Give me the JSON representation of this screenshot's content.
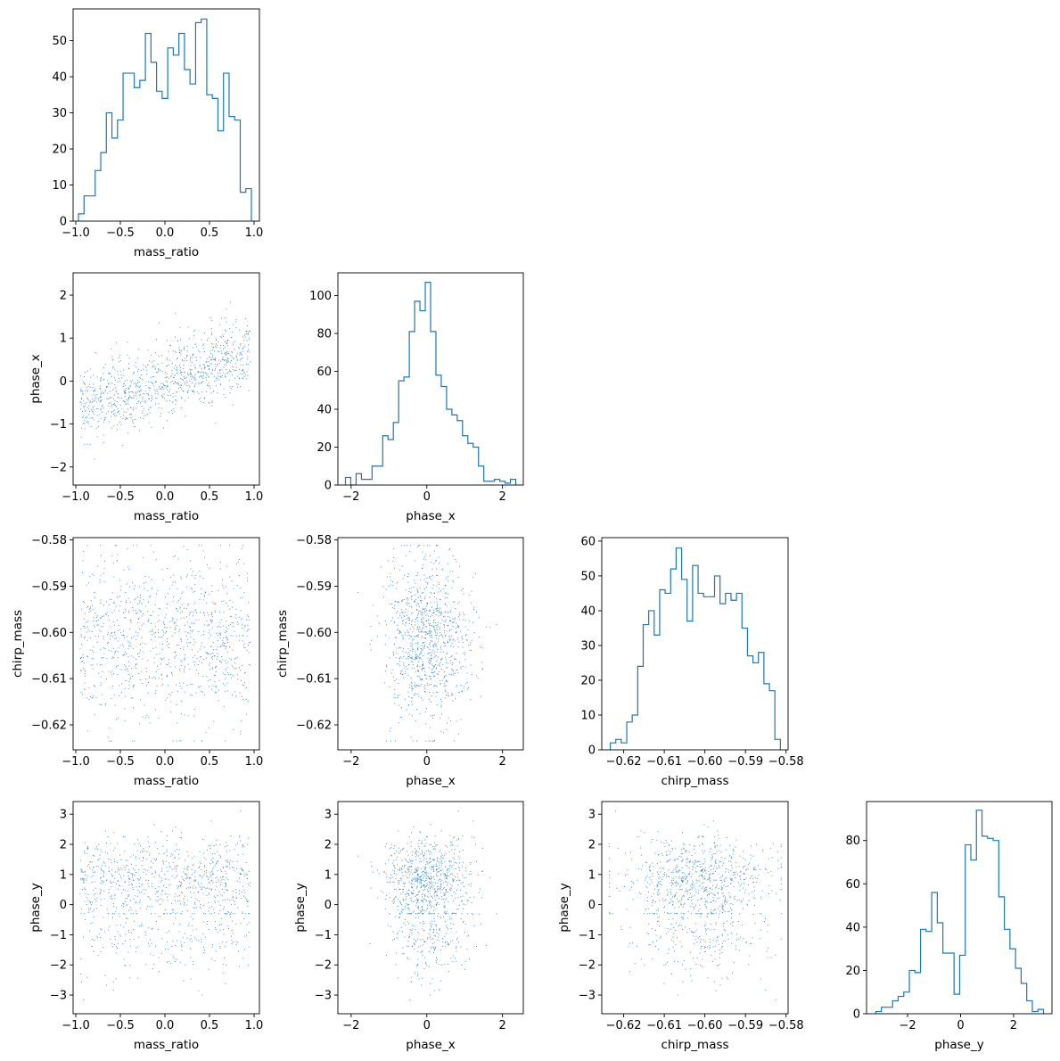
{
  "chart_data": [
    {
      "type": "histogram",
      "variable": "mass_ratio",
      "xlabel": "mass_ratio",
      "ylabel": "",
      "xlim": [
        -1.03,
        1.06
      ],
      "ylim": [
        0,
        58.8
      ],
      "xticks": [
        {
          "v": -1.0,
          "label": "−1.0"
        },
        {
          "v": -0.5,
          "label": "−0.5"
        },
        {
          "v": 0.0,
          "label": "0.0"
        },
        {
          "v": 0.5,
          "label": "0.5"
        },
        {
          "v": 1.0,
          "label": "1.0"
        }
      ],
      "yticks": [
        {
          "v": 0,
          "label": "0"
        },
        {
          "v": 10,
          "label": "10"
        },
        {
          "v": 20,
          "label": "20"
        },
        {
          "v": 30,
          "label": "30"
        },
        {
          "v": 40,
          "label": "40"
        },
        {
          "v": 50,
          "label": "50"
        }
      ],
      "bins": {
        "start": -0.97,
        "end": 0.97
      },
      "counts": [
        2,
        7,
        7,
        14,
        19,
        30,
        23,
        28,
        41,
        41,
        37,
        39,
        52,
        44,
        36,
        34,
        48,
        46,
        52,
        42,
        38,
        55,
        56,
        35,
        34,
        25,
        41,
        29,
        28,
        8,
        9
      ]
    },
    {
      "type": "scatter",
      "xvar": "mass_ratio",
      "yvar": "phase_x",
      "xlabel": "mass_ratio",
      "ylabel": "phase_x",
      "xlim": [
        -1.03,
        1.06
      ],
      "ylim": [
        -2.42,
        2.52
      ],
      "xticks": [
        {
          "v": -1.0,
          "label": "−1.0"
        },
        {
          "v": -0.5,
          "label": "−0.5"
        },
        {
          "v": 0.0,
          "label": "0.0"
        },
        {
          "v": 0.5,
          "label": "0.5"
        },
        {
          "v": 1.0,
          "label": "1.0"
        }
      ],
      "yticks": [
        {
          "v": -2,
          "label": "−2"
        },
        {
          "v": -1,
          "label": "−1"
        },
        {
          "v": 0,
          "label": "0"
        },
        {
          "v": 1,
          "label": "1"
        },
        {
          "v": 2,
          "label": "2"
        }
      ]
    },
    {
      "type": "histogram",
      "variable": "phase_x",
      "xlabel": "phase_x",
      "ylabel": "",
      "xlim": [
        -2.35,
        2.55
      ],
      "ylim": [
        0,
        112
      ],
      "xticks": [
        {
          "v": -2,
          "label": "−2"
        },
        {
          "v": 0,
          "label": "0"
        },
        {
          "v": 2,
          "label": "2"
        }
      ],
      "yticks": [
        {
          "v": 0,
          "label": "0"
        },
        {
          "v": 20,
          "label": "20"
        },
        {
          "v": 40,
          "label": "40"
        },
        {
          "v": 60,
          "label": "60"
        },
        {
          "v": 80,
          "label": "80"
        },
        {
          "v": 100,
          "label": "100"
        }
      ],
      "bins": {
        "start": -2.15,
        "end": 2.35
      },
      "counts": [
        4,
        0,
        6,
        3,
        3,
        10,
        10,
        26,
        24,
        33,
        55,
        57,
        81,
        97,
        92,
        107,
        81,
        58,
        52,
        40,
        37,
        34,
        26,
        22,
        20,
        10,
        2,
        2,
        3,
        2,
        1,
        3
      ]
    },
    {
      "type": "scatter",
      "xvar": "mass_ratio",
      "yvar": "chirp_mass",
      "xlabel": "mass_ratio",
      "ylabel": "chirp_mass",
      "xlim": [
        -1.03,
        1.06
      ],
      "ylim": [
        -0.6254,
        -0.5795
      ],
      "xticks": [
        {
          "v": -1.0,
          "label": "−1.0"
        },
        {
          "v": -0.5,
          "label": "−0.5"
        },
        {
          "v": 0.0,
          "label": "0.0"
        },
        {
          "v": 0.5,
          "label": "0.5"
        },
        {
          "v": 1.0,
          "label": "1.0"
        }
      ],
      "yticks": [
        {
          "v": -0.62,
          "label": "−0.62"
        },
        {
          "v": -0.61,
          "label": "−0.61"
        },
        {
          "v": -0.6,
          "label": "−0.60"
        },
        {
          "v": -0.59,
          "label": "−0.59"
        },
        {
          "v": -0.58,
          "label": "−0.58"
        }
      ]
    },
    {
      "type": "scatter",
      "xvar": "phase_x",
      "yvar": "chirp_mass",
      "xlabel": "phase_x",
      "ylabel": "chirp_mass",
      "xlim": [
        -2.35,
        2.55
      ],
      "ylim": [
        -0.6254,
        -0.5795
      ],
      "xticks": [
        {
          "v": -2,
          "label": "−2"
        },
        {
          "v": 0,
          "label": "0"
        },
        {
          "v": 2,
          "label": "2"
        }
      ],
      "yticks": [
        {
          "v": -0.62,
          "label": "−0.62"
        },
        {
          "v": -0.61,
          "label": "−0.61"
        },
        {
          "v": -0.6,
          "label": "−0.60"
        },
        {
          "v": -0.59,
          "label": "−0.59"
        },
        {
          "v": -0.58,
          "label": "−0.58"
        }
      ]
    },
    {
      "type": "histogram",
      "variable": "chirp_mass",
      "xlabel": "chirp_mass",
      "ylabel": "",
      "xlim": [
        -0.6254,
        -0.5795
      ],
      "ylim": [
        0,
        61
      ],
      "xticks": [
        {
          "v": -0.62,
          "label": "−0.62"
        },
        {
          "v": -0.61,
          "label": "−0.61"
        },
        {
          "v": -0.6,
          "label": "−0.60"
        },
        {
          "v": -0.59,
          "label": "−0.59"
        },
        {
          "v": -0.58,
          "label": "−0.58"
        }
      ],
      "yticks": [
        {
          "v": 0,
          "label": "0"
        },
        {
          "v": 10,
          "label": "10"
        },
        {
          "v": 20,
          "label": "20"
        },
        {
          "v": 30,
          "label": "30"
        },
        {
          "v": 40,
          "label": "40"
        },
        {
          "v": 50,
          "label": "50"
        },
        {
          "v": 60,
          "label": "60"
        }
      ],
      "bins": {
        "start": -0.6233,
        "end": -0.5814
      },
      "counts": [
        2,
        3,
        2,
        8,
        10,
        24,
        36,
        40,
        33,
        46,
        45,
        52,
        58,
        49,
        37,
        53,
        45,
        44,
        44,
        50,
        42,
        45,
        43,
        45,
        35,
        27,
        25,
        28,
        19,
        17,
        3
      ]
    },
    {
      "type": "scatter",
      "xvar": "mass_ratio",
      "yvar": "phase_y",
      "xlabel": "mass_ratio",
      "ylabel": "phase_y",
      "xlim": [
        -1.03,
        1.06
      ],
      "ylim": [
        -3.62,
        3.42
      ],
      "xticks": [
        {
          "v": -1.0,
          "label": "−1.0"
        },
        {
          "v": -0.5,
          "label": "−0.5"
        },
        {
          "v": 0.0,
          "label": "0.0"
        },
        {
          "v": 0.5,
          "label": "0.5"
        },
        {
          "v": 1.0,
          "label": "1.0"
        }
      ],
      "yticks": [
        {
          "v": -3,
          "label": "−3"
        },
        {
          "v": -2,
          "label": "−2"
        },
        {
          "v": -1,
          "label": "−1"
        },
        {
          "v": 0,
          "label": "0"
        },
        {
          "v": 1,
          "label": "1"
        },
        {
          "v": 2,
          "label": "2"
        },
        {
          "v": 3,
          "label": "3"
        }
      ]
    },
    {
      "type": "scatter",
      "xvar": "phase_x",
      "yvar": "phase_y",
      "xlabel": "phase_x",
      "ylabel": "phase_y",
      "xlim": [
        -2.35,
        2.55
      ],
      "ylim": [
        -3.62,
        3.42
      ],
      "xticks": [
        {
          "v": -2,
          "label": "−2"
        },
        {
          "v": 0,
          "label": "0"
        },
        {
          "v": 2,
          "label": "2"
        }
      ],
      "yticks": [
        {
          "v": -3,
          "label": "−3"
        },
        {
          "v": -2,
          "label": "−2"
        },
        {
          "v": -1,
          "label": "−1"
        },
        {
          "v": 0,
          "label": "0"
        },
        {
          "v": 1,
          "label": "1"
        },
        {
          "v": 2,
          "label": "2"
        },
        {
          "v": 3,
          "label": "3"
        }
      ]
    },
    {
      "type": "scatter",
      "xvar": "chirp_mass",
      "yvar": "phase_y",
      "xlabel": "chirp_mass",
      "ylabel": "phase_y",
      "xlim": [
        -0.6254,
        -0.5795
      ],
      "ylim": [
        -3.62,
        3.42
      ],
      "xticks": [
        {
          "v": -0.62,
          "label": "−0.62"
        },
        {
          "v": -0.61,
          "label": "−0.61"
        },
        {
          "v": -0.6,
          "label": "−0.60"
        },
        {
          "v": -0.59,
          "label": "−0.59"
        },
        {
          "v": -0.58,
          "label": "−0.58"
        }
      ],
      "yticks": [
        {
          "v": -3,
          "label": "−3"
        },
        {
          "v": -2,
          "label": "−2"
        },
        {
          "v": -1,
          "label": "−1"
        },
        {
          "v": 0,
          "label": "0"
        },
        {
          "v": 1,
          "label": "1"
        },
        {
          "v": 2,
          "label": "2"
        },
        {
          "v": 3,
          "label": "3"
        }
      ]
    },
    {
      "type": "histogram",
      "variable": "phase_y",
      "xlabel": "phase_y",
      "ylabel": "",
      "xlim": [
        -3.55,
        3.45
      ],
      "ylim": [
        0,
        98
      ],
      "xticks": [
        {
          "v": -2,
          "label": "−2"
        },
        {
          "v": 0,
          "label": "0"
        },
        {
          "v": 2,
          "label": "2"
        }
      ],
      "yticks": [
        {
          "v": 0,
          "label": "0"
        },
        {
          "v": 20,
          "label": "20"
        },
        {
          "v": 40,
          "label": "40"
        },
        {
          "v": 60,
          "label": "60"
        },
        {
          "v": 80,
          "label": "80"
        }
      ],
      "bins": {
        "start": -3.2,
        "end": 3.13
      },
      "counts": [
        1,
        3,
        3,
        6,
        8,
        10,
        20,
        19,
        39,
        38,
        56,
        42,
        28,
        28,
        9,
        27,
        78,
        71,
        94,
        82,
        81,
        80,
        54,
        39,
        30,
        21,
        14,
        6,
        1,
        2
      ]
    }
  ]
}
